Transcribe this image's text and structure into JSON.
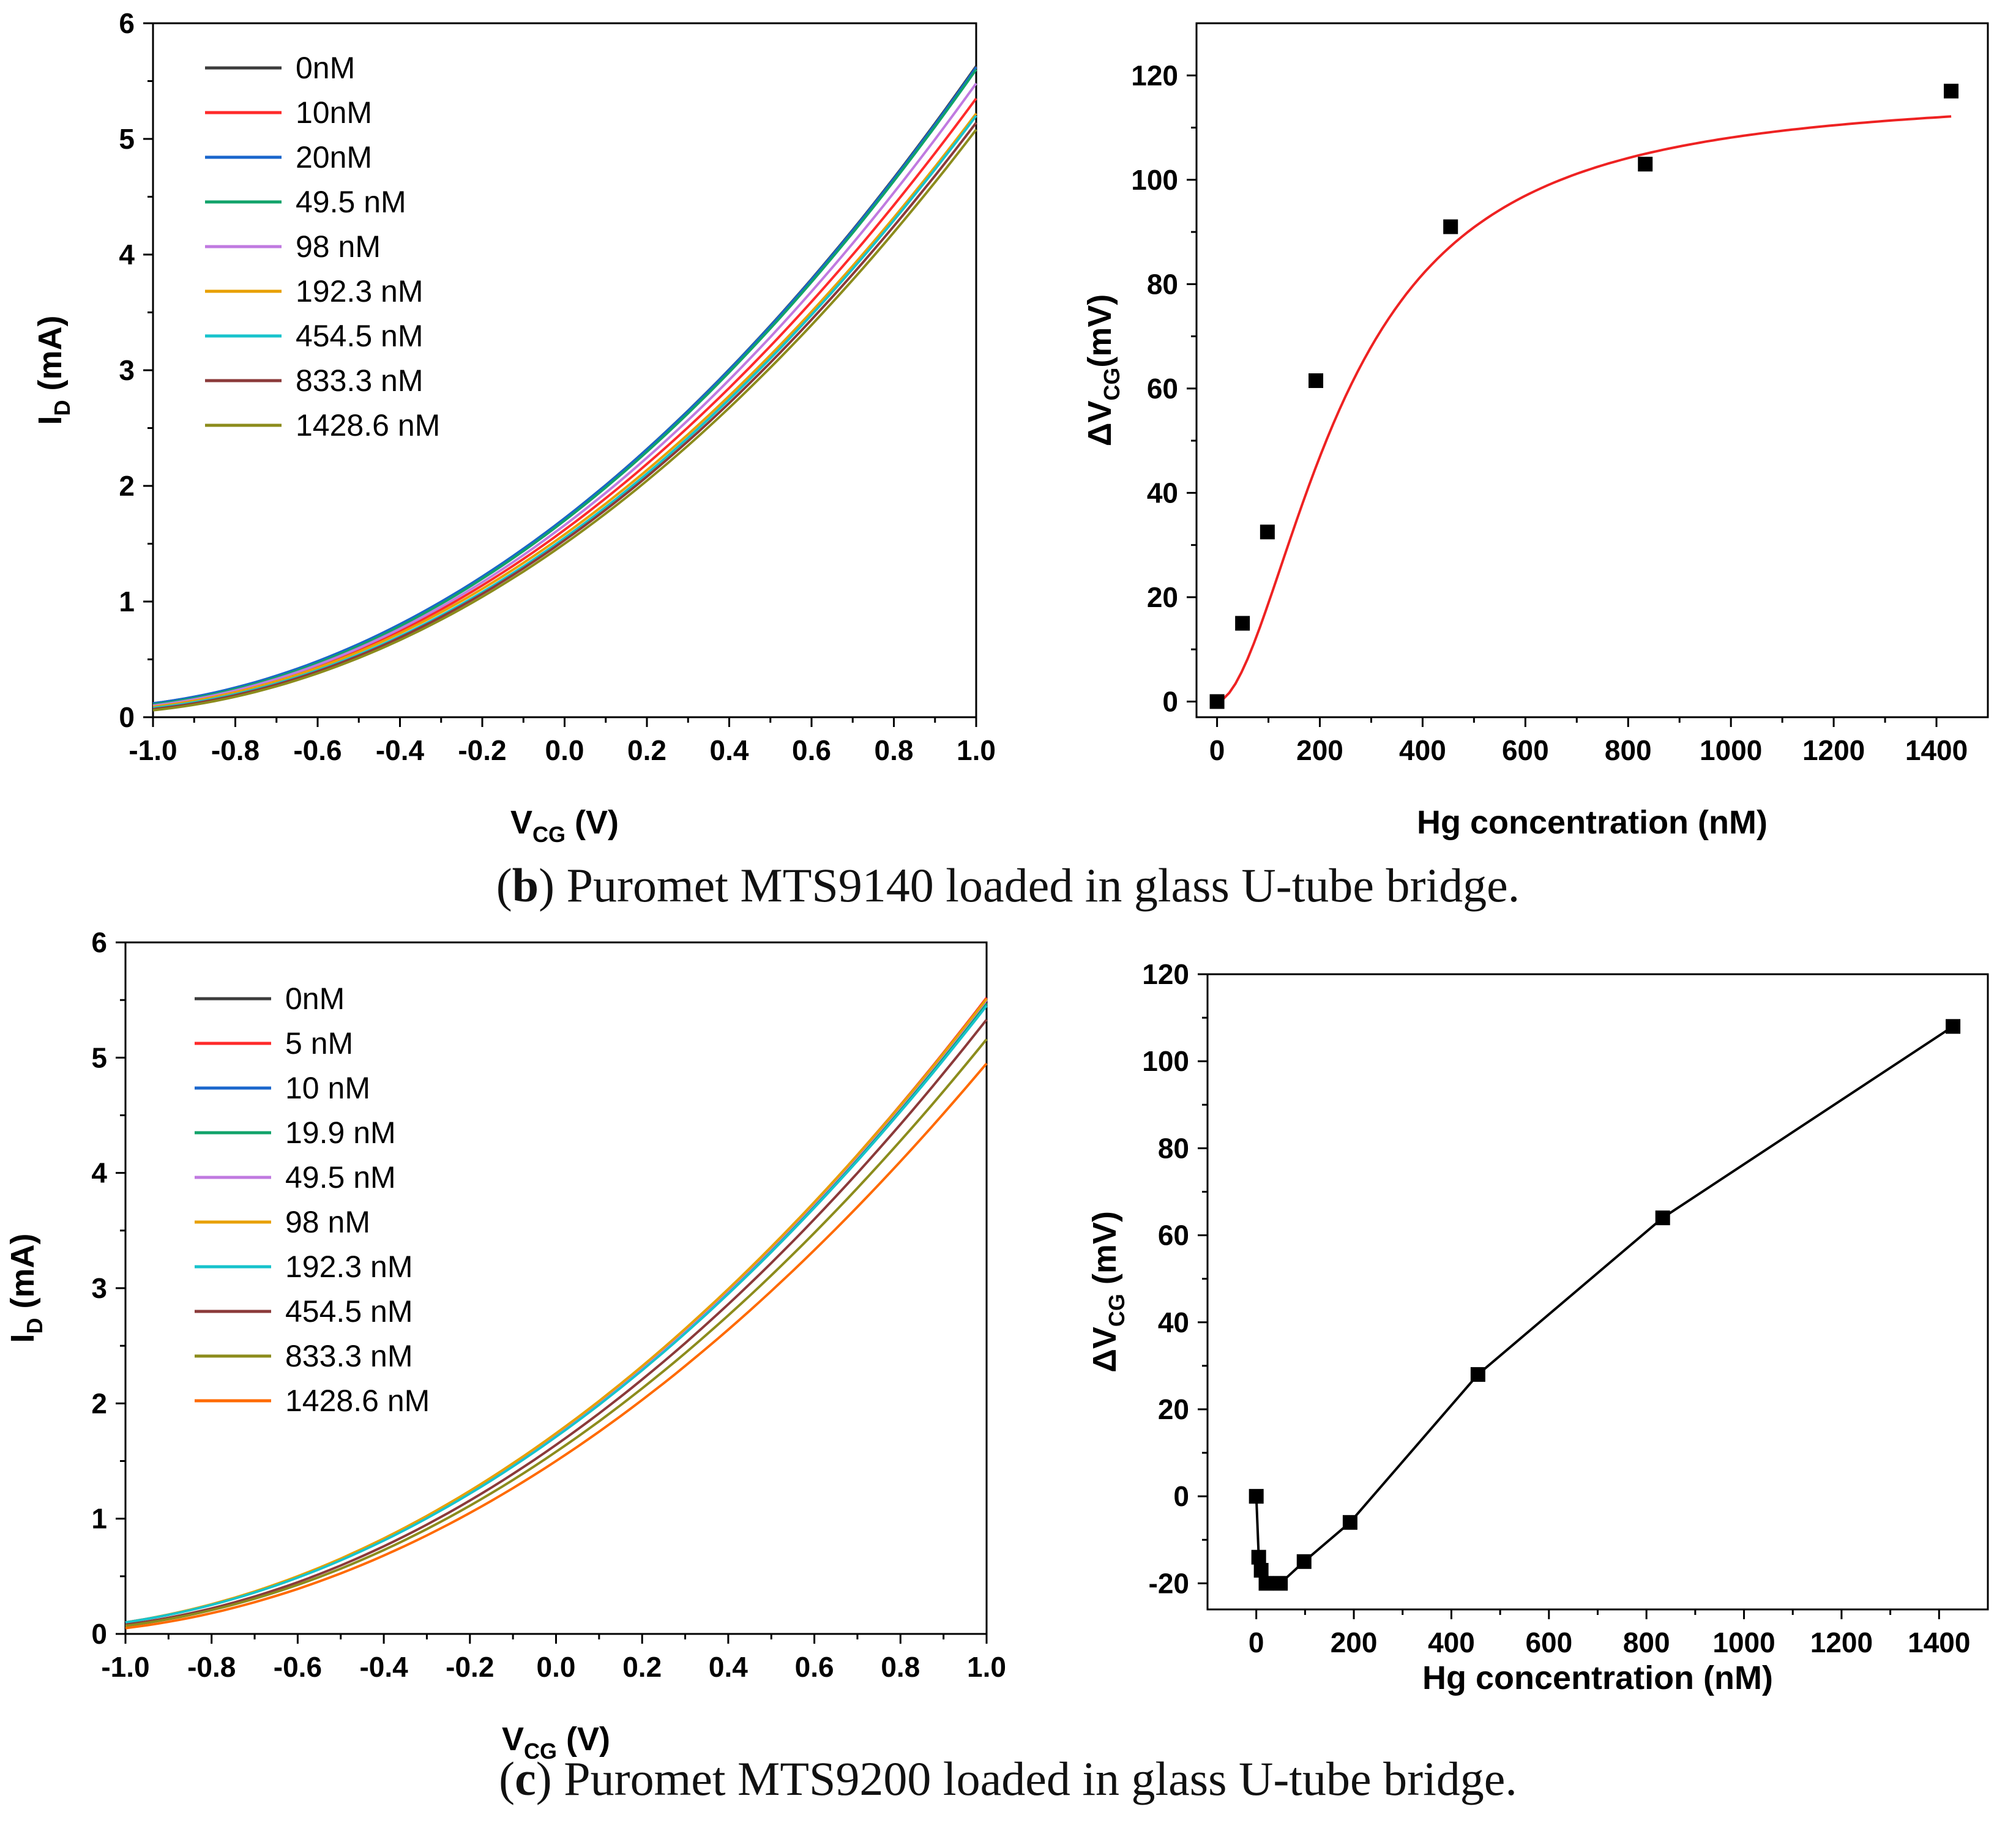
{
  "figure": {
    "captions": [
      {
        "label": "b",
        "text": "Puromet MTS9140 loaded in glass U-tube bridge."
      },
      {
        "label": "c",
        "text": "Puromet MTS9200 loaded in glass U-tube bridge."
      }
    ]
  },
  "chart_data": [
    {
      "id": "b-left",
      "type": "line",
      "title": "",
      "xlabel": {
        "main": "V",
        "sub": "CG",
        "unit": " (V)"
      },
      "ylabel": {
        "main": "I",
        "sub": "D",
        "unit": " (mA)"
      },
      "xlim": [
        -1.0,
        1.0
      ],
      "ylim": [
        0,
        6
      ],
      "xticks": [
        "-1.0",
        "-0.8",
        "-0.6",
        "-0.4",
        "-0.2",
        "0.0",
        "0.2",
        "0.4",
        "0.6",
        "0.8",
        "1.0"
      ],
      "yticks": [
        "0",
        "1",
        "2",
        "3",
        "4",
        "5",
        "6"
      ],
      "legend_position": "top-left",
      "series": [
        {
          "name": "0nM",
          "color": "#3c3c3c",
          "y_at_-1": 0.12,
          "y_at_0": 1.72,
          "y_at_1": 5.63
        },
        {
          "name": "10nM",
          "color": "#ff2a2a",
          "y_at_-1": 0.1,
          "y_at_0": 1.62,
          "y_at_1": 5.35
        },
        {
          "name": "20nM",
          "color": "#1a66cc",
          "y_at_-1": 0.12,
          "y_at_0": 1.72,
          "y_at_1": 5.62
        },
        {
          "name": "49.5 nM",
          "color": "#11a36a",
          "y_at_-1": 0.11,
          "y_at_0": 1.7,
          "y_at_1": 5.6
        },
        {
          "name": "98 nM",
          "color": "#c07ae0",
          "y_at_-1": 0.1,
          "y_at_0": 1.66,
          "y_at_1": 5.48
        },
        {
          "name": "192.3 nM",
          "color": "#e8a000",
          "y_at_-1": 0.09,
          "y_at_0": 1.58,
          "y_at_1": 5.22
        },
        {
          "name": "454.5 nM",
          "color": "#17c3cc",
          "y_at_-1": 0.08,
          "y_at_0": 1.55,
          "y_at_1": 5.2
        },
        {
          "name": "833.3 nM",
          "color": "#8b3a3a",
          "y_at_-1": 0.07,
          "y_at_0": 1.53,
          "y_at_1": 5.14
        },
        {
          "name": "1428.6 nM",
          "color": "#8c8c1c",
          "y_at_-1": 0.06,
          "y_at_0": 1.5,
          "y_at_1": 5.08
        }
      ]
    },
    {
      "id": "b-right",
      "type": "scatter",
      "title": "",
      "xlabel": {
        "main": "Hg concentration (nM)"
      },
      "ylabel": {
        "main": "ΔV",
        "sub": "CG",
        "unit": "(mV)"
      },
      "xlim": [
        -40,
        1500
      ],
      "ylim": [
        -3,
        130
      ],
      "xticks": [
        0,
        200,
        400,
        600,
        800,
        1000,
        1200,
        1400
      ],
      "yticks": [
        0,
        20,
        40,
        60,
        80,
        100,
        120
      ],
      "points": {
        "x": [
          0,
          49.5,
          98,
          192.3,
          454.5,
          833.3,
          1428.6
        ],
        "y": [
          0,
          15,
          32.5,
          61.5,
          91,
          103,
          117
        ]
      },
      "fit": {
        "color": "#ee2222",
        "model": "hill",
        "vmax": 117,
        "k": 250,
        "n": 1.8
      }
    },
    {
      "id": "c-left",
      "type": "line",
      "title": "",
      "xlabel": {
        "main": "V",
        "sub": "CG",
        "unit": " (V)"
      },
      "ylabel": {
        "main": "I",
        "sub": "D",
        "unit": " (mA)"
      },
      "xlim": [
        -1.0,
        1.0
      ],
      "ylim": [
        0,
        6
      ],
      "xticks": [
        "-1.0",
        "-0.8",
        "-0.6",
        "-0.4",
        "-0.2",
        "0.0",
        "0.2",
        "0.4",
        "0.6",
        "0.8",
        "1.0"
      ],
      "yticks": [
        "0",
        "1",
        "2",
        "3",
        "4",
        "5",
        "6"
      ],
      "legend_position": "top-left",
      "series": [
        {
          "name": "0nM",
          "color": "#3c3c3c",
          "y_at_-1": 0.1,
          "y_at_0": 1.72,
          "y_at_1": 5.48
        },
        {
          "name": "5 nM",
          "color": "#ff2a2a",
          "y_at_-1": 0.1,
          "y_at_0": 1.73,
          "y_at_1": 5.52
        },
        {
          "name": "10 nM",
          "color": "#1a66cc",
          "y_at_-1": 0.1,
          "y_at_0": 1.72,
          "y_at_1": 5.46
        },
        {
          "name": "19.9 nM",
          "color": "#11a36a",
          "y_at_-1": 0.1,
          "y_at_0": 1.72,
          "y_at_1": 5.47
        },
        {
          "name": "49.5 nM",
          "color": "#c07ae0",
          "y_at_-1": 0.1,
          "y_at_0": 1.73,
          "y_at_1": 5.5
        },
        {
          "name": "98 nM",
          "color": "#e8a000",
          "y_at_-1": 0.1,
          "y_at_0": 1.74,
          "y_at_1": 5.51
        },
        {
          "name": "192.3 nM",
          "color": "#17c3cc",
          "y_at_-1": 0.1,
          "y_at_0": 1.71,
          "y_at_1": 5.45
        },
        {
          "name": "454.5 nM",
          "color": "#8b3a3a",
          "y_at_-1": 0.08,
          "y_at_0": 1.64,
          "y_at_1": 5.33
        },
        {
          "name": "833.3 nM",
          "color": "#8c8c1c",
          "y_at_-1": 0.07,
          "y_at_0": 1.58,
          "y_at_1": 5.16
        },
        {
          "name": "1428.6 nM",
          "color": "#ff6a00",
          "y_at_-1": 0.05,
          "y_at_0": 1.5,
          "y_at_1": 4.95
        }
      ]
    },
    {
      "id": "c-right",
      "type": "line",
      "title": "",
      "xlabel": {
        "main": "Hg concentration (nM)"
      },
      "ylabel": {
        "main": "ΔV",
        "sub": "CG",
        "unit": " (mV)"
      },
      "xlim": [
        -100,
        1500
      ],
      "ylim": [
        -26,
        120
      ],
      "xticks": [
        0,
        200,
        400,
        600,
        800,
        1000,
        1200,
        1400
      ],
      "yticks": [
        -20,
        0,
        20,
        40,
        60,
        80,
        100,
        120
      ],
      "points": {
        "x": [
          0,
          5,
          10,
          19.9,
          49.5,
          98,
          192.3,
          454.5,
          833.3,
          1428.6
        ],
        "y": [
          0,
          -14,
          -17,
          -20,
          -20,
          -15,
          -6,
          28,
          64,
          108
        ]
      },
      "line_color": "#000000"
    }
  ]
}
